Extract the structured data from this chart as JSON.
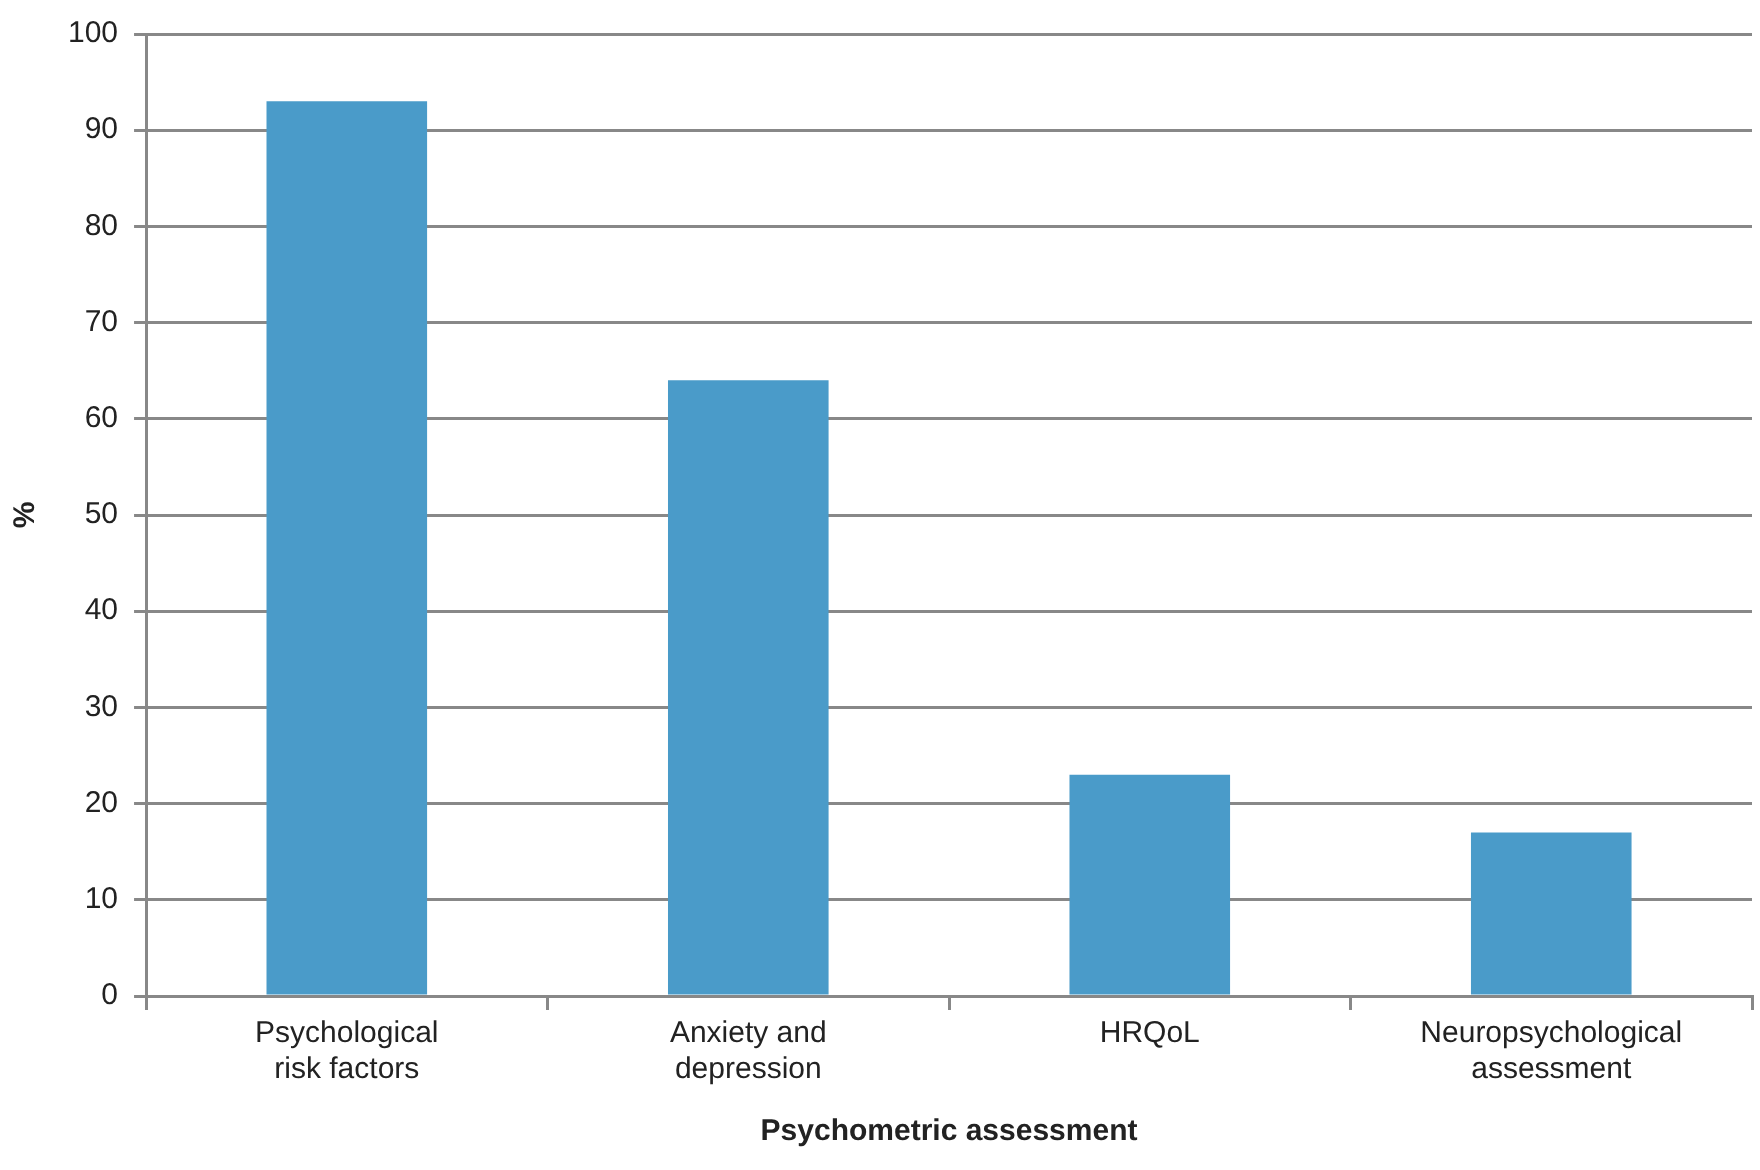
{
  "chart_data": {
    "type": "bar",
    "xlabel": "Psychometric assessment",
    "ylabel": "%",
    "categories": [
      "Psychological risk factors",
      "Anxiety and depression",
      "HRQoL",
      "Neuropsychological assessment"
    ],
    "values": [
      93,
      64,
      23,
      17
    ],
    "color": "#4a9bc9",
    "ylim": [
      0,
      100
    ],
    "yticks": [
      0,
      10,
      20,
      30,
      40,
      50,
      60,
      70,
      80,
      90,
      100
    ],
    "grid": "y",
    "legend": false
  }
}
